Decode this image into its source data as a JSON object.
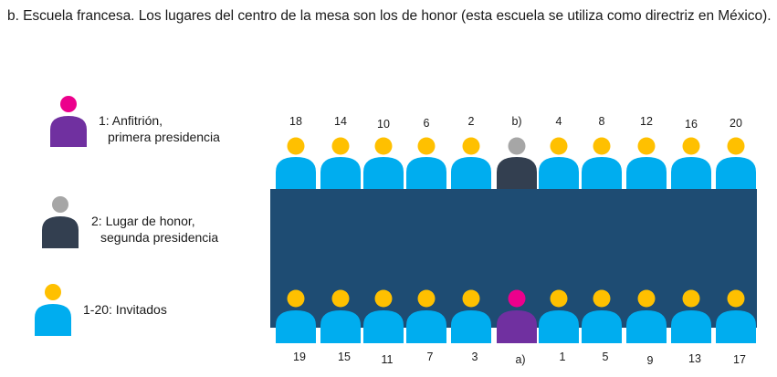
{
  "heading": "b. Escuela francesa. Los lugares del centro de la mesa son los de honor (esta escuela se utiliza como directriz en México).",
  "colors": {
    "table": "#1e4c73",
    "guest_body": "#00adef",
    "guest_head": "#ffc000",
    "host_body": "#7030a0",
    "host_head": "#ec008c",
    "honor_body": "#333f50",
    "honor_head": "#a6a6a6"
  },
  "legend": [
    {
      "role": "host",
      "line1": "1: Anfitrión,",
      "line2": "primera presidencia"
    },
    {
      "role": "honor",
      "line1": "2: Lugar de honor,",
      "line2": "segunda presidencia"
    },
    {
      "role": "guest",
      "line1": "1-20: Invitados"
    }
  ],
  "top_row": [
    {
      "label": "18",
      "role": "guest"
    },
    {
      "label": "14",
      "role": "guest"
    },
    {
      "label": "10",
      "role": "guest"
    },
    {
      "label": "6",
      "role": "guest"
    },
    {
      "label": "2",
      "role": "guest"
    },
    {
      "label": "b)",
      "role": "honor"
    },
    {
      "label": "4",
      "role": "guest"
    },
    {
      "label": "8",
      "role": "guest"
    },
    {
      "label": "12",
      "role": "guest"
    },
    {
      "label": "16",
      "role": "guest"
    },
    {
      "label": "20",
      "role": "guest"
    }
  ],
  "bottom_row": [
    {
      "label": "19",
      "role": "guest"
    },
    {
      "label": "15",
      "role": "guest"
    },
    {
      "label": "11",
      "role": "guest"
    },
    {
      "label": "7",
      "role": "guest"
    },
    {
      "label": "3",
      "role": "guest"
    },
    {
      "label": "a)",
      "role": "host"
    },
    {
      "label": "1",
      "role": "guest"
    },
    {
      "label": "5",
      "role": "guest"
    },
    {
      "label": "9",
      "role": "guest"
    },
    {
      "label": "13",
      "role": "guest"
    },
    {
      "label": "17",
      "role": "guest"
    }
  ]
}
